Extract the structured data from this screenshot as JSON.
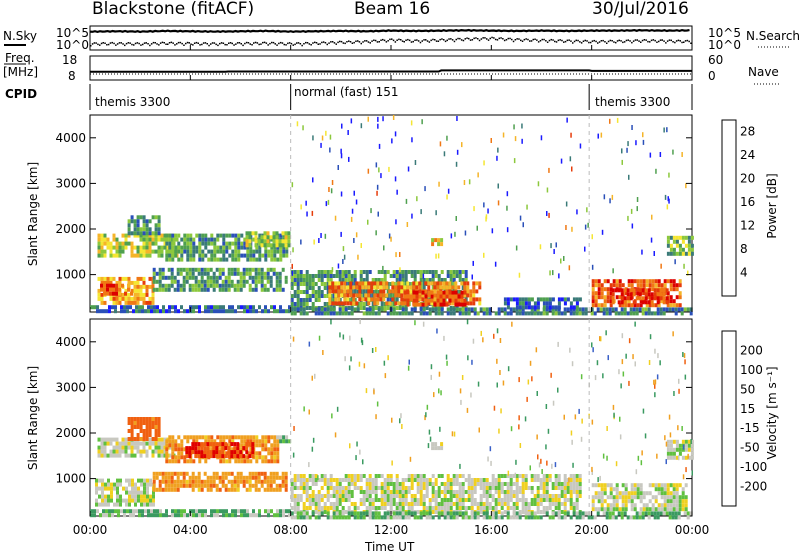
{
  "header": {
    "station": "Blackstone (fitACF)",
    "beam": "Beam 16",
    "date": "30/Jul/2016"
  },
  "top_panels": {
    "nsky_label": "N.Sky",
    "nsearch_label": "N.Search",
    "noise_ticks_left": [
      "10^5",
      "10^0"
    ],
    "noise_ticks_right": [
      "10^5",
      "10^0"
    ],
    "freq_label_1": "Freq.",
    "freq_label_2": "[MHz]",
    "freq_ticks": [
      "18",
      "8"
    ],
    "nave_label": "Nave",
    "nave_ticks": [
      "60",
      "0"
    ],
    "cpid_label": "CPID",
    "cpid_segments": [
      {
        "label": "themis 3300",
        "start": 0,
        "end": 8
      },
      {
        "label": "normal (fast) 151",
        "start": 8,
        "end": 19.9
      },
      {
        "label": "themis 3300",
        "start": 19.9,
        "end": 24
      }
    ]
  },
  "power_panel": {
    "ylabel": "Slant Range [km]",
    "yticks": [
      "1000",
      "2000",
      "3000",
      "4000"
    ],
    "cbar_label": "Power [dB]",
    "cbar_ticks": [
      "4",
      "8",
      "12",
      "16",
      "20",
      "24",
      "28"
    ],
    "cbar_colors": [
      "#1a1aff",
      "#2a4fb8",
      "#3a7a78",
      "#4fa04f",
      "#8cc83c",
      "#f5e632",
      "#f5b428",
      "#f07814",
      "#e63c0a",
      "#dc0000"
    ]
  },
  "velocity_panel": {
    "ylabel": "Slant Range [km]",
    "yticks": [
      "1000",
      "2000",
      "3000",
      "4000"
    ],
    "cbar_label": "Velocity [m s⁻¹]",
    "cbar_ticks": [
      "200",
      "100",
      "50",
      "15",
      "-15",
      "-50",
      "-100",
      "-200"
    ],
    "cbar_colors": [
      "#1a1aff",
      "#3a60c8",
      "#3a9a60",
      "#60c040",
      "#c8c8c0",
      "#f0d020",
      "#f0a020",
      "#f06010",
      "#e00000"
    ],
    "ground_scatter_color": "#c0c0b8"
  },
  "xaxis": {
    "xlabel": "Time UT",
    "xticks": [
      "00:00",
      "04:00",
      "08:00",
      "12:00",
      "16:00",
      "20:00",
      "00:00"
    ]
  },
  "chart_data": [
    {
      "type": "line",
      "title": "Blackstone (fitACF)",
      "series": [
        {
          "name": "N.Sky",
          "x": [
            0,
            1,
            2,
            3,
            4,
            5,
            6,
            7,
            8,
            9,
            10,
            11,
            12,
            13,
            14,
            15,
            16,
            17,
            18,
            19,
            20,
            21,
            22,
            23,
            24
          ],
          "values": [
            4.5,
            4.6,
            4.5,
            4.7,
            4.6,
            4.5,
            4.6,
            4.7,
            4.5,
            4.6,
            4.7,
            4.6,
            4.8,
            4.7,
            4.8,
            4.9,
            4.8,
            4.7,
            4.8,
            4.7,
            4.8,
            4.8,
            4.9,
            4.8,
            4.9
          ]
        },
        {
          "name": "N.Search",
          "x": [
            0,
            1,
            2,
            3,
            4,
            5,
            6,
            7,
            8,
            9,
            10,
            11,
            12,
            13,
            14,
            15,
            16,
            17,
            18,
            19,
            20,
            21,
            22,
            23,
            24
          ],
          "values": [
            0.3,
            0.4,
            0.3,
            0.5,
            0.4,
            0.3,
            0.4,
            0.5,
            0.3,
            0.5,
            0.8,
            1.0,
            1.5,
            1.2,
            1.5,
            1.8,
            2.0,
            1.6,
            1.4,
            1.2,
            1.0,
            1.1,
            1.3,
            1.2,
            1.0
          ]
        }
      ]
    },
    {
      "type": "line",
      "series": [
        {
          "name": "Freq.",
          "x": [
            0,
            5.4,
            5.5,
            13.9,
            14,
            19.9,
            20,
            24
          ],
          "values": [
            10.6,
            10.6,
            10.8,
            10.8,
            11.5,
            11.5,
            11.2,
            11.2
          ]
        }
      ]
    },
    {
      "type": "heatmap",
      "ylabel": "Slant Range [km]",
      "xlabel": "Time UT",
      "xlim": [
        0,
        24
      ],
      "ylim": [
        180,
        4500
      ],
      "regions": [
        {
          "t0": 0.0,
          "t1": 8.0,
          "r0": 220,
          "r1": 330,
          "level": 8
        },
        {
          "t0": 0.3,
          "t1": 2.5,
          "r0": 400,
          "r1": 950,
          "level": 22
        },
        {
          "t0": 0.4,
          "t1": 1.6,
          "r0": 550,
          "r1": 800,
          "level": 27
        },
        {
          "t0": 2.5,
          "t1": 7.8,
          "r0": 700,
          "r1": 1150,
          "level": 12
        },
        {
          "t0": 0.3,
          "t1": 3.5,
          "r0": 1450,
          "r1": 1900,
          "level": 17
        },
        {
          "t0": 1.5,
          "t1": 2.8,
          "r0": 1900,
          "r1": 2300,
          "level": 12
        },
        {
          "t0": 3.0,
          "t1": 7.8,
          "r0": 1300,
          "r1": 1900,
          "level": 12
        },
        {
          "t0": 6.2,
          "t1": 7.9,
          "r0": 1600,
          "r1": 1950,
          "level": 16
        },
        {
          "t0": 8.0,
          "t1": 15.0,
          "r0": 300,
          "r1": 1100,
          "level": 12
        },
        {
          "t0": 9.5,
          "t1": 15.5,
          "r0": 330,
          "r1": 850,
          "level": 24
        },
        {
          "t0": 12.5,
          "t1": 15.0,
          "r0": 350,
          "r1": 650,
          "level": 28
        },
        {
          "t0": 8.0,
          "t1": 24.0,
          "r0": 180,
          "r1": 280,
          "level": 10
        },
        {
          "t0": 16.5,
          "t1": 19.5,
          "r0": 280,
          "r1": 500,
          "level": 8
        },
        {
          "t0": 20.0,
          "t1": 23.5,
          "r0": 300,
          "r1": 900,
          "level": 26
        },
        {
          "t0": 20.8,
          "t1": 23.0,
          "r0": 350,
          "r1": 700,
          "level": 28
        },
        {
          "t0": 13.6,
          "t1": 14.0,
          "r0": 1650,
          "r1": 1800,
          "level": 20
        },
        {
          "t0": 23.0,
          "t1": 24.0,
          "r0": 1450,
          "r1": 1850,
          "level": 14
        }
      ]
    },
    {
      "type": "heatmap",
      "ylabel": "Slant Range [km]",
      "xlabel": "Time UT",
      "xlim": [
        0,
        24
      ],
      "ylim": [
        180,
        4500
      ],
      "regions": [
        {
          "t0": 0.0,
          "t1": 8.0,
          "r0": 200,
          "r1": 330,
          "level": 30
        },
        {
          "t0": 0.2,
          "t1": 2.5,
          "r0": 400,
          "r1": 1000,
          "level": 0
        },
        {
          "t0": 2.5,
          "t1": 7.8,
          "r0": 750,
          "r1": 1150,
          "level": -60
        },
        {
          "t0": 0.3,
          "t1": 3.3,
          "r0": 1500,
          "r1": 1900,
          "level": 0
        },
        {
          "t0": 1.5,
          "t1": 2.7,
          "r0": 1900,
          "r1": 2350,
          "level": -100
        },
        {
          "t0": 3.0,
          "t1": 7.5,
          "r0": 1350,
          "r1": 1950,
          "level": -60
        },
        {
          "t0": 3.8,
          "t1": 6.5,
          "r0": 1500,
          "r1": 1800,
          "level": -150
        },
        {
          "t0": 7.3,
          "t1": 7.9,
          "r0": 1800,
          "r1": 1950,
          "level": 30
        },
        {
          "t0": 8.0,
          "t1": 19.5,
          "r0": 300,
          "r1": 1100,
          "level": 0
        },
        {
          "t0": 8.0,
          "t1": 24.0,
          "r0": 180,
          "r1": 280,
          "level": 25
        },
        {
          "t0": 20.0,
          "t1": 23.8,
          "r0": 300,
          "r1": 900,
          "level": 0
        },
        {
          "t0": 13.6,
          "t1": 14.0,
          "r0": 1650,
          "r1": 1800,
          "level": 0
        },
        {
          "t0": 23.0,
          "t1": 24.0,
          "r0": 1450,
          "r1": 1850,
          "level": 0
        }
      ]
    }
  ]
}
